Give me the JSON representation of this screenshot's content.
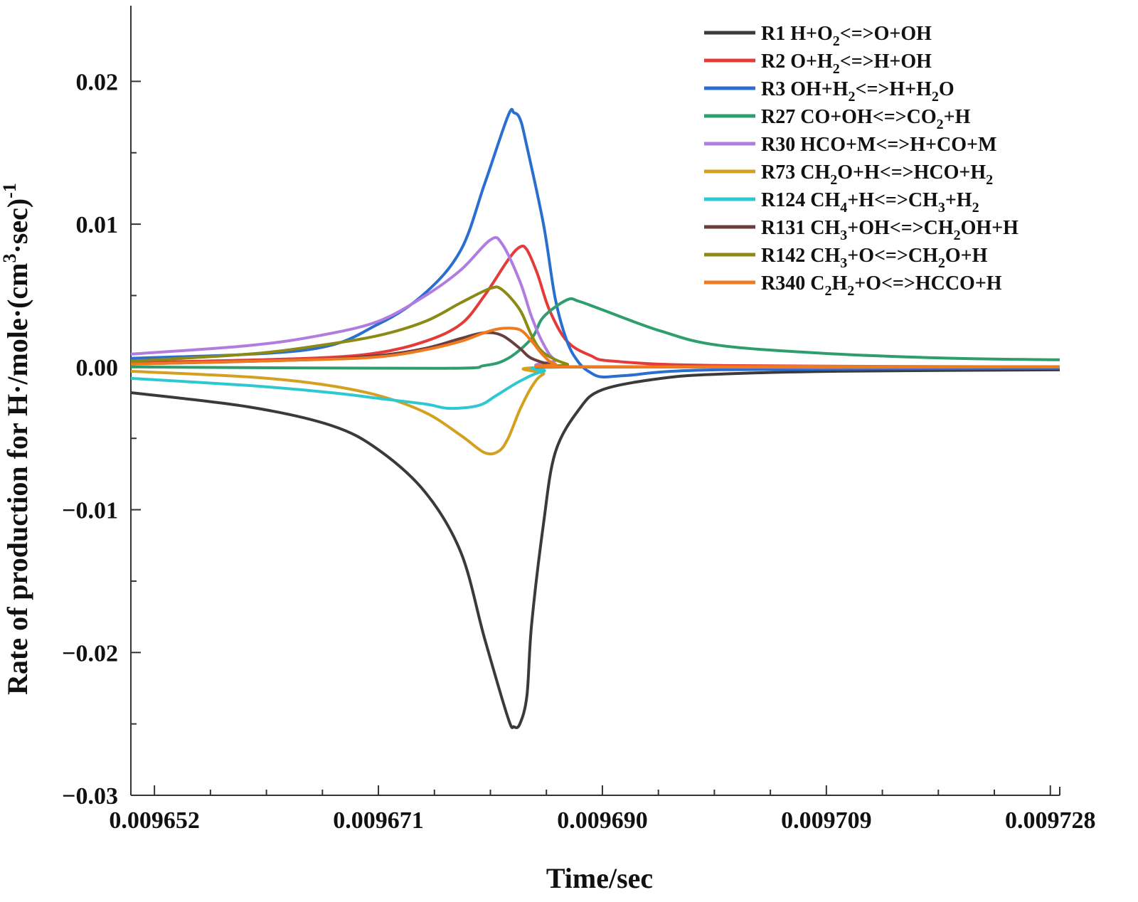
{
  "chart_data": {
    "type": "line",
    "title": "",
    "xlabel": "Time/sec",
    "ylabel": "Rate of production for H·/mole·(cm³·sec)⁻¹",
    "ylabel_parts": {
      "pre": "Rate of production for H·/mole·(cm",
      "sup1": "3",
      "mid": "·sec)",
      "sup2": "-1"
    },
    "xlim": [
      0.00965,
      0.0097288
    ],
    "ylim": [
      -0.03,
      0.0253
    ],
    "x_ticks": [
      {
        "value": 0.009652,
        "label": "0.009652"
      },
      {
        "value": 0.009671,
        "label": "0.009671"
      },
      {
        "value": 0.00969,
        "label": "0.009690"
      },
      {
        "value": 0.009709,
        "label": "0.009709"
      },
      {
        "value": 0.009728,
        "label": "0.009728"
      }
    ],
    "y_ticks": [
      {
        "value": 0.02,
        "label": "0.02"
      },
      {
        "value": 0.01,
        "label": "0.01"
      },
      {
        "value": 0.0,
        "label": "0.00"
      },
      {
        "value": -0.01,
        "label": "−0.01"
      },
      {
        "value": -0.02,
        "label": "−0.02"
      },
      {
        "value": -0.03,
        "label": "−0.03"
      }
    ],
    "legend_position": "top-right",
    "series": [
      {
        "key": "r1",
        "color": "#3a3a3a",
        "label_parts": [
          [
            "R1 H+O",
            ""
          ],
          [
            "2",
            "sub"
          ],
          [
            "<=>O+OH",
            ""
          ]
        ],
        "points": [
          [
            0.00965,
            -0.0018
          ],
          [
            0.00966,
            -0.0028
          ],
          [
            0.009667,
            -0.0041
          ],
          [
            0.009671,
            -0.0058
          ],
          [
            0.009675,
            -0.0088
          ],
          [
            0.009678,
            -0.013
          ],
          [
            0.00968,
            -0.019
          ],
          [
            0.009682,
            -0.0246
          ],
          [
            0.0096825,
            -0.0252
          ],
          [
            0.009683,
            -0.025
          ],
          [
            0.0096836,
            -0.023
          ],
          [
            0.009684,
            -0.018
          ],
          [
            0.009685,
            -0.011
          ],
          [
            0.009686,
            -0.006
          ],
          [
            0.009688,
            -0.003
          ],
          [
            0.00969,
            -0.0016
          ],
          [
            0.009695,
            -0.0008
          ],
          [
            0.0097,
            -0.0005
          ],
          [
            0.00971,
            -0.0003
          ],
          [
            0.009729,
            -0.0002
          ]
        ]
      },
      {
        "key": "r2",
        "color": "#e53a3a",
        "label_parts": [
          [
            "R2 O+H",
            ""
          ],
          [
            "2",
            "sub"
          ],
          [
            "<=>H+OH",
            ""
          ]
        ],
        "points": [
          [
            0.00965,
            0.0003
          ],
          [
            0.009665,
            0.0006
          ],
          [
            0.009671,
            0.001
          ],
          [
            0.009675,
            0.0018
          ],
          [
            0.009678,
            0.003
          ],
          [
            0.00968,
            0.005
          ],
          [
            0.009682,
            0.0075
          ],
          [
            0.009683,
            0.0084
          ],
          [
            0.0096836,
            0.0082
          ],
          [
            0.0096845,
            0.0065
          ],
          [
            0.0096855,
            0.004
          ],
          [
            0.009687,
            0.0018
          ],
          [
            0.009689,
            0.0008
          ],
          [
            0.009691,
            0.0004
          ],
          [
            0.0097,
            0.0001
          ],
          [
            0.009729,
            0.0
          ]
        ]
      },
      {
        "key": "r3",
        "color": "#2a6fd0",
        "label_parts": [
          [
            "R3 OH+H",
            ""
          ],
          [
            "2",
            "sub"
          ],
          [
            "<=>H+H",
            ""
          ],
          [
            "2",
            "sub"
          ],
          [
            "O",
            ""
          ]
        ],
        "points": [
          [
            0.00965,
            0.0006
          ],
          [
            0.009665,
            0.0012
          ],
          [
            0.009671,
            0.003
          ],
          [
            0.009675,
            0.0052
          ],
          [
            0.009678,
            0.0082
          ],
          [
            0.00968,
            0.0128
          ],
          [
            0.009682,
            0.0176
          ],
          [
            0.0096825,
            0.0178
          ],
          [
            0.009683,
            0.0174
          ],
          [
            0.0096835,
            0.0158
          ],
          [
            0.009685,
            0.01
          ],
          [
            0.009686,
            0.0048
          ],
          [
            0.009687,
            0.0018
          ],
          [
            0.009688,
            0.0003
          ],
          [
            0.009689,
            -0.0004
          ],
          [
            0.00969,
            -0.0007
          ],
          [
            0.009692,
            -0.0006
          ],
          [
            0.0097,
            -0.0002
          ],
          [
            0.009729,
            -0.0001
          ]
        ]
      },
      {
        "key": "r27",
        "color": "#2e9e6e",
        "label_parts": [
          [
            "R27 CO+OH<=>CO",
            ""
          ],
          [
            "2",
            "sub"
          ],
          [
            "+H",
            ""
          ]
        ],
        "points": [
          [
            0.00965,
            0.0
          ],
          [
            0.009676,
            -0.0001
          ],
          [
            0.00968,
            0.0001
          ],
          [
            0.009682,
            0.0006
          ],
          [
            0.009684,
            0.002
          ],
          [
            0.009685,
            0.0035
          ],
          [
            0.009687,
            0.0047
          ],
          [
            0.009688,
            0.0046
          ],
          [
            0.00969,
            0.004
          ],
          [
            0.009695,
            0.0025
          ],
          [
            0.0097,
            0.0015
          ],
          [
            0.00971,
            0.0009
          ],
          [
            0.00972,
            0.0006
          ],
          [
            0.009729,
            0.0005
          ]
        ]
      },
      {
        "key": "r30",
        "color": "#b07ce0",
        "label_parts": [
          [
            "R30 HCO+M<=>H+CO+M",
            ""
          ]
        ],
        "points": [
          [
            0.00965,
            0.0009
          ],
          [
            0.00966,
            0.0015
          ],
          [
            0.009666,
            0.0022
          ],
          [
            0.009671,
            0.0032
          ],
          [
            0.009675,
            0.005
          ],
          [
            0.009678,
            0.0068
          ],
          [
            0.0096805,
            0.0089
          ],
          [
            0.0096815,
            0.0086
          ],
          [
            0.009683,
            0.006
          ],
          [
            0.009684,
            0.0035
          ],
          [
            0.009685,
            0.0016
          ],
          [
            0.009686,
            0.0005
          ],
          [
            0.009688,
            0.0
          ],
          [
            0.009729,
            0.0
          ]
        ]
      },
      {
        "key": "r73",
        "color": "#d4a020",
        "label_parts": [
          [
            "R73 CH",
            ""
          ],
          [
            "2",
            "sub"
          ],
          [
            "O+H<=>HCO+H",
            ""
          ],
          [
            "2",
            "sub"
          ]
        ],
        "points": [
          [
            0.00965,
            -0.0003
          ],
          [
            0.00966,
            -0.0007
          ],
          [
            0.009666,
            -0.0012
          ],
          [
            0.009671,
            -0.002
          ],
          [
            0.009675,
            -0.0032
          ],
          [
            0.009678,
            -0.0048
          ],
          [
            0.00968,
            -0.006
          ],
          [
            0.0096812,
            -0.0059
          ],
          [
            0.009682,
            -0.005
          ],
          [
            0.009683,
            -0.003
          ],
          [
            0.009684,
            -0.0014
          ],
          [
            0.009685,
            -0.0005
          ],
          [
            0.009687,
            0.0
          ],
          [
            0.009729,
            0.0
          ]
        ]
      },
      {
        "key": "r124",
        "color": "#2ec8d0",
        "label_parts": [
          [
            "R124 CH",
            ""
          ],
          [
            "4",
            "sub"
          ],
          [
            "+H<=>CH",
            ""
          ],
          [
            "3",
            "sub"
          ],
          [
            "+H",
            ""
          ],
          [
            "2",
            "sub"
          ]
        ],
        "points": [
          [
            0.00965,
            -0.0008
          ],
          [
            0.00966,
            -0.0013
          ],
          [
            0.009667,
            -0.0018
          ],
          [
            0.009671,
            -0.0022
          ],
          [
            0.009675,
            -0.0026
          ],
          [
            0.009677,
            -0.0029
          ],
          [
            0.0096795,
            -0.0027
          ],
          [
            0.009681,
            -0.002
          ],
          [
            0.009683,
            -0.001
          ],
          [
            0.009685,
            -0.0003
          ],
          [
            0.009688,
            0.0
          ],
          [
            0.009729,
            0.0
          ]
        ]
      },
      {
        "key": "r131",
        "color": "#6a3e3e",
        "label_parts": [
          [
            "R131 CH",
            ""
          ],
          [
            "3",
            "sub"
          ],
          [
            "+OH<=>CH",
            ""
          ],
          [
            "2",
            "sub"
          ],
          [
            "OH+H",
            ""
          ]
        ],
        "points": [
          [
            0.00965,
            0.0002
          ],
          [
            0.009665,
            0.0005
          ],
          [
            0.009671,
            0.0008
          ],
          [
            0.009675,
            0.0013
          ],
          [
            0.009678,
            0.002
          ],
          [
            0.00968,
            0.0024
          ],
          [
            0.0096815,
            0.0022
          ],
          [
            0.009683,
            0.0013
          ],
          [
            0.009684,
            0.0006
          ],
          [
            0.009686,
            0.0001
          ],
          [
            0.009688,
            0.0
          ],
          [
            0.009729,
            0.0
          ]
        ]
      },
      {
        "key": "r142",
        "color": "#8a8a14",
        "label_parts": [
          [
            "R142 CH",
            ""
          ],
          [
            "3",
            "sub"
          ],
          [
            "+O<=>CH",
            ""
          ],
          [
            "2",
            "sub"
          ],
          [
            "O+H",
            ""
          ]
        ],
        "points": [
          [
            0.00965,
            0.0004
          ],
          [
            0.00966,
            0.0009
          ],
          [
            0.009666,
            0.0015
          ],
          [
            0.009671,
            0.0022
          ],
          [
            0.009675,
            0.0032
          ],
          [
            0.009678,
            0.0045
          ],
          [
            0.0096805,
            0.0055
          ],
          [
            0.0096815,
            0.0054
          ],
          [
            0.009683,
            0.004
          ],
          [
            0.009684,
            0.0022
          ],
          [
            0.009685,
            0.001
          ],
          [
            0.009687,
            0.0002
          ],
          [
            0.009689,
            0.0
          ],
          [
            0.009729,
            0.0
          ]
        ]
      },
      {
        "key": "r340",
        "color": "#f07a20",
        "label_parts": [
          [
            "R340 C",
            ""
          ],
          [
            "2",
            "sub"
          ],
          [
            "H",
            ""
          ],
          [
            "2",
            "sub"
          ],
          [
            "+O<=>HCCO+H",
            ""
          ]
        ],
        "points": [
          [
            0.00965,
            0.0002
          ],
          [
            0.009665,
            0.0005
          ],
          [
            0.009671,
            0.0007
          ],
          [
            0.009675,
            0.0012
          ],
          [
            0.009678,
            0.0018
          ],
          [
            0.00968,
            0.0024
          ],
          [
            0.0096815,
            0.0027
          ],
          [
            0.009683,
            0.0026
          ],
          [
            0.009684,
            0.0018
          ],
          [
            0.009685,
            0.0008
          ],
          [
            0.009686,
            0.0002
          ],
          [
            0.009688,
            0.0
          ],
          [
            0.009729,
            0.0
          ]
        ]
      }
    ]
  }
}
